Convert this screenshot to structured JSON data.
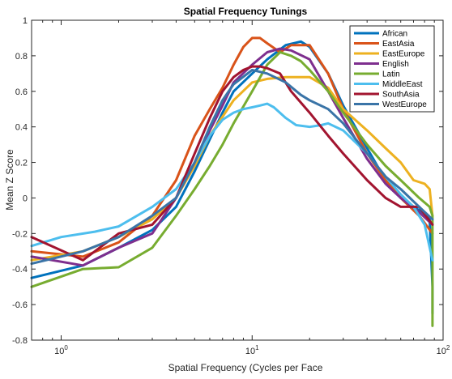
{
  "chart_data": {
    "type": "line",
    "title": "Spatial Frequency Tunings",
    "xlabel": "Spatial Frequency (Cycles per Face",
    "ylabel": "Mean Z Score",
    "x_scale": "log",
    "xlim": [
      0.7,
      100
    ],
    "ylim": [
      -0.8,
      1
    ],
    "x_ticks": [
      {
        "value": 1,
        "base": "10",
        "exp": "0"
      },
      {
        "value": 10,
        "base": "10",
        "exp": "1"
      },
      {
        "value": 100,
        "base": "10",
        "exp": "2"
      }
    ],
    "y_ticks": [
      {
        "value": 1,
        "label": "1"
      },
      {
        "value": 0.8,
        "label": "0.8"
      },
      {
        "value": 0.6,
        "label": "0.6"
      },
      {
        "value": 0.4,
        "label": "0.4"
      },
      {
        "value": 0.2,
        "label": "0.2"
      },
      {
        "value": 0,
        "label": "0"
      },
      {
        "value": -0.2,
        "label": "-0.2"
      },
      {
        "value": -0.4,
        "label": "-0.4"
      },
      {
        "value": -0.6,
        "label": "-0.6"
      },
      {
        "value": -0.8,
        "label": "-0.8"
      }
    ],
    "grid": false,
    "legend_position": "top-right",
    "series": [
      {
        "name": "African",
        "color": "#0072BD",
        "x": [
          0.7,
          1.3,
          2,
          3,
          4,
          5,
          6,
          7,
          8,
          10,
          12,
          15,
          18,
          20,
          25,
          30,
          40,
          50,
          60,
          75,
          85,
          88,
          88
        ],
        "y": [
          -0.45,
          -0.38,
          -0.28,
          -0.18,
          -0.05,
          0.15,
          0.33,
          0.48,
          0.6,
          0.7,
          0.78,
          0.86,
          0.88,
          0.85,
          0.7,
          0.52,
          0.28,
          0.1,
          0.0,
          -0.07,
          -0.12,
          -0.5,
          -0.65
        ]
      },
      {
        "name": "EastAsia",
        "color": "#D95319",
        "x": [
          0.7,
          1.3,
          2,
          3,
          4,
          5,
          6,
          7,
          8,
          9,
          10,
          11,
          12,
          14,
          16,
          20,
          25,
          30,
          40,
          50,
          60,
          75,
          88
        ],
        "y": [
          -0.3,
          -0.33,
          -0.25,
          -0.1,
          0.1,
          0.35,
          0.5,
          0.62,
          0.75,
          0.85,
          0.9,
          0.9,
          0.87,
          0.82,
          0.86,
          0.86,
          0.7,
          0.5,
          0.25,
          0.1,
          0.0,
          -0.1,
          -0.2
        ]
      },
      {
        "name": "EastEurope",
        "color": "#EDB120",
        "x": [
          0.7,
          1.3,
          2,
          3,
          4,
          5,
          6,
          8,
          10,
          12,
          15,
          20,
          25,
          30,
          40,
          50,
          60,
          70,
          80,
          85,
          88
        ],
        "y": [
          -0.35,
          -0.3,
          -0.22,
          -0.12,
          0.0,
          0.18,
          0.35,
          0.55,
          0.65,
          0.67,
          0.68,
          0.68,
          0.62,
          0.5,
          0.38,
          0.28,
          0.2,
          0.1,
          0.08,
          0.05,
          -0.1
        ]
      },
      {
        "name": "English",
        "color": "#7E2F8E",
        "x": [
          0.7,
          1.3,
          2,
          3,
          4,
          5,
          6,
          7,
          8,
          10,
          12,
          14,
          16,
          20,
          25,
          30,
          40,
          50,
          60,
          75,
          88
        ],
        "y": [
          -0.33,
          -0.38,
          -0.28,
          -0.2,
          0.0,
          0.2,
          0.38,
          0.52,
          0.65,
          0.75,
          0.82,
          0.84,
          0.83,
          0.78,
          0.6,
          0.45,
          0.22,
          0.08,
          0.0,
          -0.08,
          -0.15
        ]
      },
      {
        "name": "Latin",
        "color": "#77AC30",
        "x": [
          0.7,
          1.3,
          2,
          3,
          4,
          5,
          6,
          7,
          8,
          10,
          12,
          14,
          16,
          18,
          20,
          25,
          30,
          40,
          50,
          60,
          75,
          85,
          88,
          88
        ],
        "y": [
          -0.5,
          -0.4,
          -0.39,
          -0.28,
          -0.1,
          0.05,
          0.18,
          0.3,
          0.42,
          0.6,
          0.75,
          0.82,
          0.8,
          0.77,
          0.72,
          0.6,
          0.48,
          0.3,
          0.18,
          0.1,
          0.0,
          -0.05,
          -0.1,
          -0.72
        ]
      },
      {
        "name": "MiddleEast",
        "color": "#4DBEEE",
        "x": [
          0.7,
          1,
          1.5,
          2,
          3,
          4,
          5,
          6,
          7,
          8,
          9,
          10,
          11,
          12,
          13,
          15,
          17,
          20,
          23,
          25,
          30,
          40,
          50,
          60,
          70,
          80,
          88
        ],
        "y": [
          -0.27,
          -0.22,
          -0.19,
          -0.16,
          -0.05,
          0.05,
          0.2,
          0.35,
          0.44,
          0.48,
          0.5,
          0.51,
          0.52,
          0.53,
          0.51,
          0.45,
          0.41,
          0.4,
          0.41,
          0.42,
          0.38,
          0.25,
          0.12,
          0.02,
          -0.05,
          -0.15,
          -0.35
        ]
      },
      {
        "name": "SouthAsia",
        "color": "#A2142F",
        "x": [
          0.7,
          1.3,
          2,
          3,
          4,
          5,
          6,
          7,
          8,
          9,
          10,
          11,
          12,
          14,
          16,
          20,
          25,
          30,
          40,
          50,
          60,
          75,
          88
        ],
        "y": [
          -0.22,
          -0.35,
          -0.2,
          -0.15,
          0.0,
          0.25,
          0.45,
          0.6,
          0.68,
          0.72,
          0.74,
          0.74,
          0.73,
          0.7,
          0.6,
          0.48,
          0.35,
          0.25,
          0.1,
          0.0,
          -0.05,
          -0.05,
          -0.15
        ]
      },
      {
        "name": "WestEurope",
        "color": "#3A74A7",
        "x": [
          0.7,
          1.3,
          2,
          3,
          4,
          5,
          6,
          7,
          8,
          10,
          12,
          15,
          18,
          20,
          25,
          30,
          40,
          50,
          60,
          75,
          88
        ],
        "y": [
          -0.37,
          -0.3,
          -0.22,
          -0.1,
          0.0,
          0.2,
          0.4,
          0.55,
          0.64,
          0.72,
          0.7,
          0.65,
          0.58,
          0.55,
          0.5,
          0.42,
          0.25,
          0.12,
          0.05,
          -0.05,
          -0.12
        ]
      }
    ]
  }
}
